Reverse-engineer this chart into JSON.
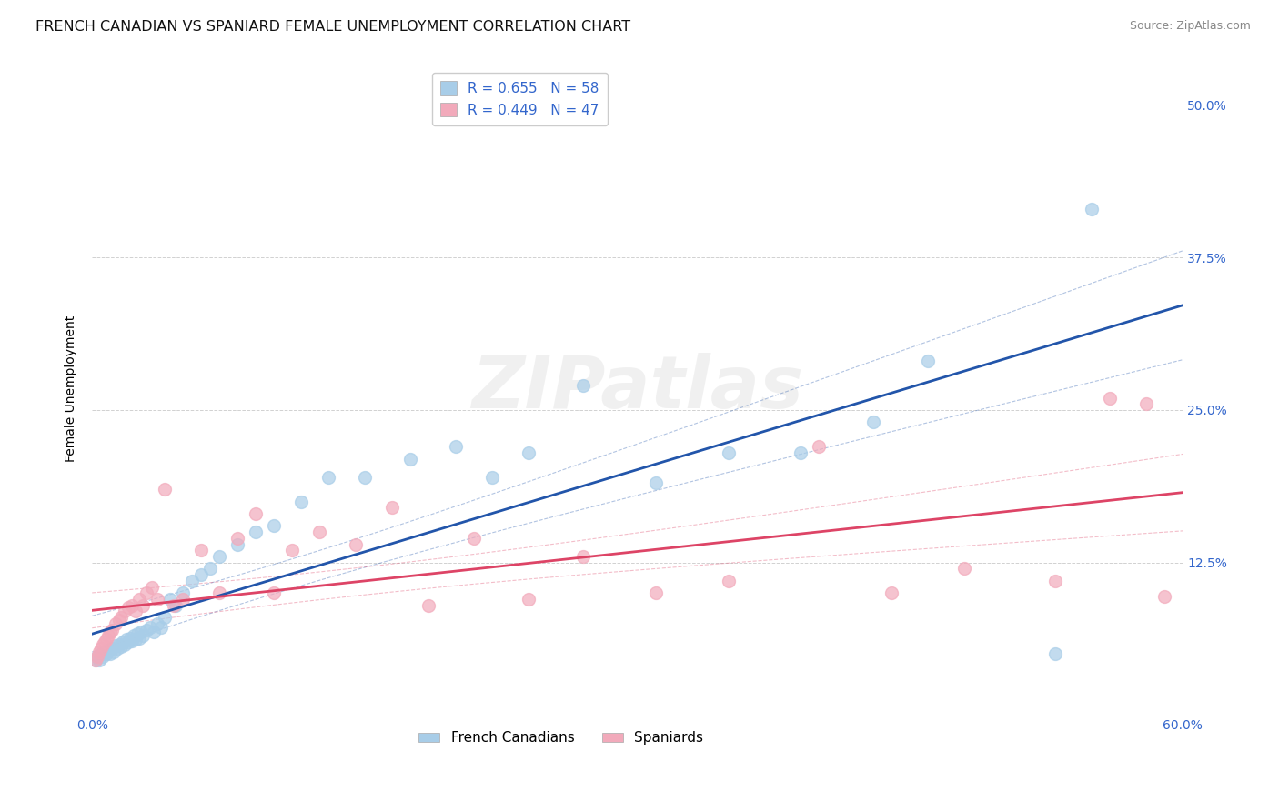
{
  "title": "FRENCH CANADIAN VS SPANIARD FEMALE UNEMPLOYMENT CORRELATION CHART",
  "source": "Source: ZipAtlas.com",
  "ylabel": "Female Unemployment",
  "xlim": [
    0.0,
    0.6
  ],
  "ylim": [
    0.0,
    0.535
  ],
  "background_color": "#ffffff",
  "french_scatter_color": "#A8CDE8",
  "spanish_scatter_color": "#F2AABB",
  "french_line_color": "#2255AA",
  "spanish_line_color": "#DD4466",
  "r_french": 0.655,
  "n_french": 58,
  "r_spanish": 0.449,
  "n_spanish": 47,
  "grid_color": "#cccccc",
  "axis_color": "#3366CC",
  "title_color": "#111111",
  "watermark": "ZIPatlas",
  "french_x": [
    0.002,
    0.003,
    0.004,
    0.005,
    0.006,
    0.007,
    0.008,
    0.009,
    0.01,
    0.011,
    0.012,
    0.013,
    0.014,
    0.015,
    0.016,
    0.017,
    0.018,
    0.019,
    0.02,
    0.021,
    0.022,
    0.023,
    0.024,
    0.025,
    0.026,
    0.027,
    0.028,
    0.03,
    0.032,
    0.034,
    0.036,
    0.038,
    0.04,
    0.043,
    0.046,
    0.05,
    0.055,
    0.06,
    0.065,
    0.07,
    0.08,
    0.09,
    0.1,
    0.115,
    0.13,
    0.15,
    0.175,
    0.2,
    0.22,
    0.24,
    0.27,
    0.31,
    0.35,
    0.39,
    0.43,
    0.46,
    0.53,
    0.55
  ],
  "french_y": [
    0.045,
    0.048,
    0.045,
    0.05,
    0.048,
    0.052,
    0.05,
    0.053,
    0.05,
    0.055,
    0.052,
    0.057,
    0.055,
    0.058,
    0.056,
    0.06,
    0.058,
    0.062,
    0.06,
    0.063,
    0.061,
    0.065,
    0.062,
    0.067,
    0.063,
    0.068,
    0.065,
    0.07,
    0.072,
    0.068,
    0.075,
    0.072,
    0.08,
    0.095,
    0.09,
    0.1,
    0.11,
    0.115,
    0.12,
    0.13,
    0.14,
    0.15,
    0.155,
    0.175,
    0.195,
    0.195,
    0.21,
    0.22,
    0.195,
    0.215,
    0.27,
    0.19,
    0.215,
    0.215,
    0.24,
    0.29,
    0.05,
    0.415
  ],
  "spanish_x": [
    0.002,
    0.003,
    0.004,
    0.005,
    0.006,
    0.007,
    0.008,
    0.009,
    0.01,
    0.011,
    0.013,
    0.015,
    0.016,
    0.018,
    0.02,
    0.022,
    0.024,
    0.026,
    0.028,
    0.03,
    0.033,
    0.036,
    0.04,
    0.045,
    0.05,
    0.06,
    0.07,
    0.08,
    0.09,
    0.1,
    0.11,
    0.125,
    0.145,
    0.165,
    0.185,
    0.21,
    0.24,
    0.27,
    0.31,
    0.35,
    0.4,
    0.44,
    0.48,
    0.53,
    0.56,
    0.58,
    0.59
  ],
  "spanish_y": [
    0.045,
    0.048,
    0.052,
    0.055,
    0.058,
    0.06,
    0.062,
    0.065,
    0.068,
    0.07,
    0.075,
    0.078,
    0.08,
    0.085,
    0.088,
    0.09,
    0.085,
    0.095,
    0.09,
    0.1,
    0.105,
    0.095,
    0.185,
    0.09,
    0.095,
    0.135,
    0.1,
    0.145,
    0.165,
    0.1,
    0.135,
    0.15,
    0.14,
    0.17,
    0.09,
    0.145,
    0.095,
    0.13,
    0.1,
    0.11,
    0.22,
    0.1,
    0.12,
    0.11,
    0.26,
    0.255,
    0.097
  ]
}
